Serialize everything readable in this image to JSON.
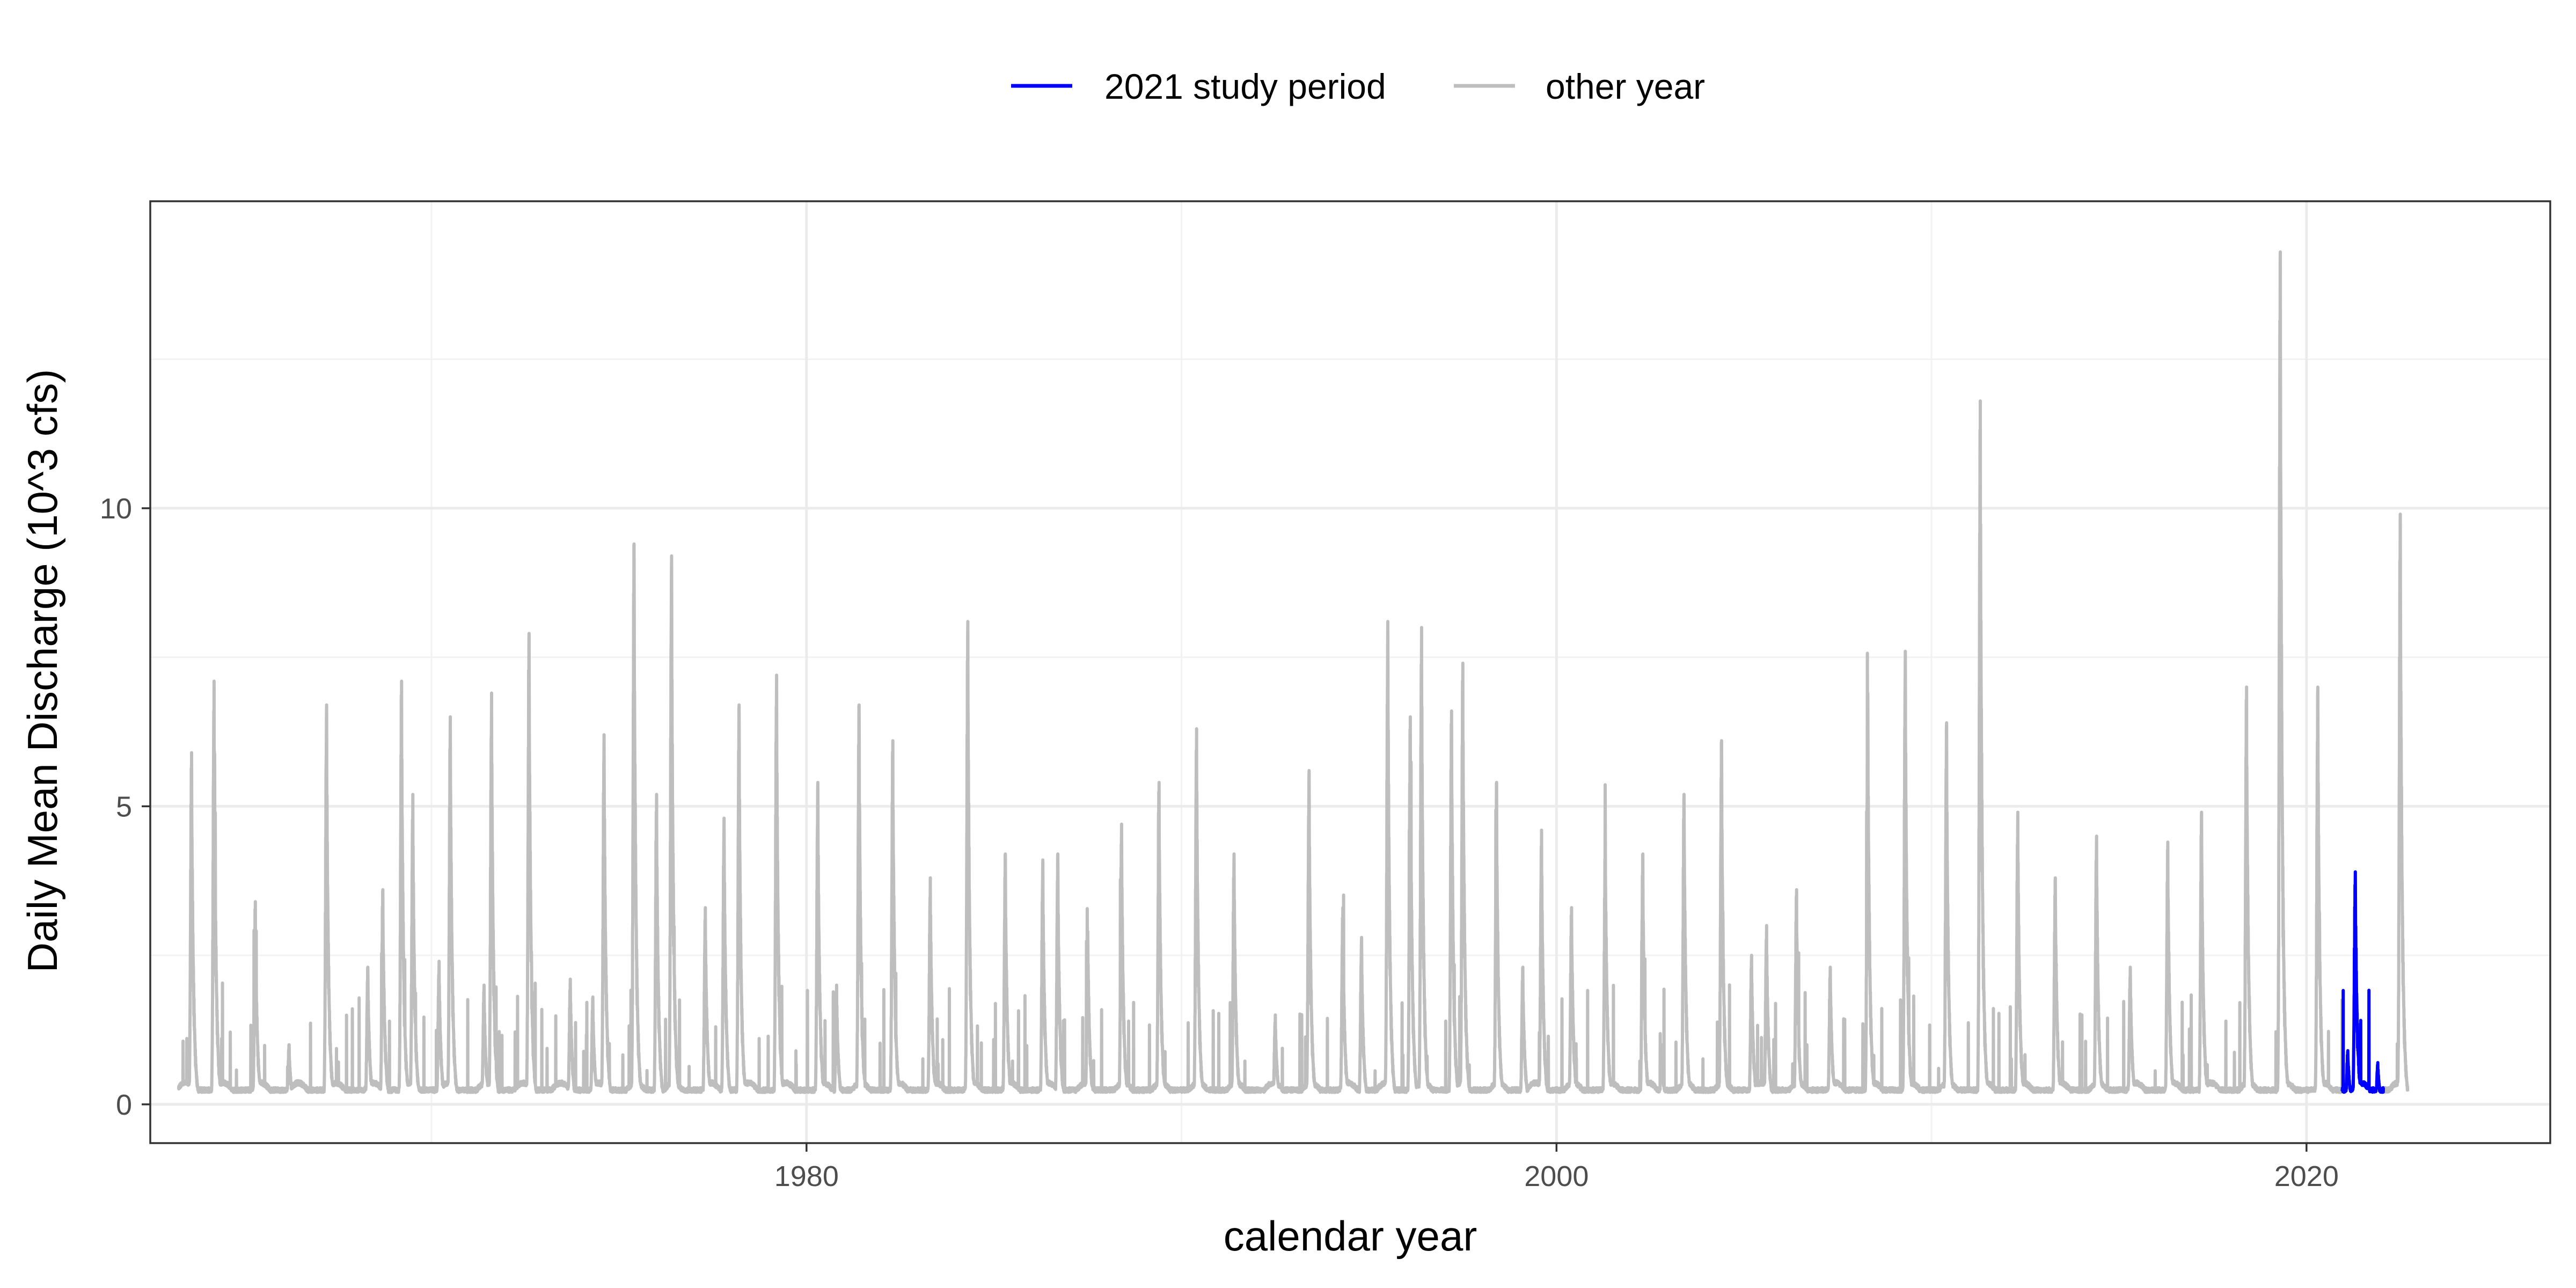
{
  "chart_data": {
    "type": "line",
    "xlabel": "calendar year",
    "ylabel": "Daily Mean Discharge (10^3 cfs)",
    "xlim": [
      1962.5,
      2026.5
    ],
    "ylim": [
      -0.65,
      15.15
    ],
    "x_ticks": [
      1980,
      2000,
      2020
    ],
    "x_tick_labels": [
      "1980",
      "2000",
      "2020"
    ],
    "y_ticks": [
      0,
      5,
      10
    ],
    "y_tick_labels": [
      "0",
      "5",
      "10"
    ],
    "grid": true,
    "legend_position": "top",
    "legend": [
      {
        "label": "2021 study period",
        "color": "#0000ff"
      },
      {
        "label": "other year",
        "color": "#bebebe"
      }
    ],
    "series": [
      {
        "name": "other year",
        "color": "#bebebe",
        "peaks": [
          [
            1963.6,
            5.9
          ],
          [
            1964.2,
            7.1
          ],
          [
            1965.3,
            3.4
          ],
          [
            1966.2,
            1.0
          ],
          [
            1967.2,
            6.7
          ],
          [
            1968.3,
            2.3
          ],
          [
            1968.7,
            3.6
          ],
          [
            1969.2,
            7.1
          ],
          [
            1969.5,
            5.2
          ],
          [
            1970.2,
            2.4
          ],
          [
            1970.5,
            6.5
          ],
          [
            1971.4,
            2.0
          ],
          [
            1971.6,
            6.9
          ],
          [
            1972.6,
            7.9
          ],
          [
            1973.7,
            2.1
          ],
          [
            1974.3,
            1.8
          ],
          [
            1974.6,
            6.2
          ],
          [
            1975.4,
            9.4
          ],
          [
            1976.0,
            5.2
          ],
          [
            1976.4,
            9.2
          ],
          [
            1977.3,
            3.3
          ],
          [
            1977.8,
            4.8
          ],
          [
            1978.2,
            6.7
          ],
          [
            1979.2,
            7.2
          ],
          [
            1980.3,
            5.4
          ],
          [
            1980.8,
            2.0
          ],
          [
            1981.4,
            6.7
          ],
          [
            1982.3,
            6.1
          ],
          [
            1983.3,
            3.8
          ],
          [
            1984.3,
            8.1
          ],
          [
            1985.3,
            4.2
          ],
          [
            1986.3,
            4.1
          ],
          [
            1986.7,
            4.2
          ],
          [
            1987.5,
            2.9
          ],
          [
            1988.4,
            4.7
          ],
          [
            1989.4,
            5.4
          ],
          [
            1990.4,
            6.3
          ],
          [
            1991.4,
            4.2
          ],
          [
            1992.5,
            1.5
          ],
          [
            1993.4,
            5.6
          ],
          [
            1994.3,
            3.3
          ],
          [
            1994.8,
            2.8
          ],
          [
            1995.5,
            8.1
          ],
          [
            1996.1,
            6.5
          ],
          [
            1996.4,
            8.0
          ],
          [
            1997.2,
            6.6
          ],
          [
            1997.5,
            7.4
          ],
          [
            1998.4,
            5.4
          ],
          [
            1999.1,
            2.3
          ],
          [
            1999.6,
            4.6
          ],
          [
            2000.4,
            3.3
          ],
          [
            2001.3,
            4.5
          ],
          [
            2002.3,
            4.2
          ],
          [
            2002.8,
            1.0
          ],
          [
            2003.4,
            5.2
          ],
          [
            2004.4,
            6.1
          ],
          [
            2005.2,
            2.5
          ],
          [
            2005.6,
            3.0
          ],
          [
            2006.4,
            3.6
          ],
          [
            2007.3,
            2.3
          ],
          [
            2008.3,
            6.9
          ],
          [
            2009.3,
            7.6
          ],
          [
            2010.4,
            6.4
          ],
          [
            2011.3,
            11.8
          ],
          [
            2012.3,
            4.9
          ],
          [
            2013.3,
            3.8
          ],
          [
            2014.4,
            4.5
          ],
          [
            2015.3,
            2.3
          ],
          [
            2016.3,
            4.4
          ],
          [
            2017.2,
            4.9
          ],
          [
            2018.4,
            7.0
          ],
          [
            2019.3,
            14.3
          ],
          [
            2020.3,
            7.0
          ],
          [
            2022.5,
            9.9
          ]
        ]
      },
      {
        "name": "2021 study period",
        "color": "#0000ff",
        "peaks": [
          [
            2021.1,
            0.9
          ],
          [
            2021.3,
            3.9
          ],
          [
            2021.9,
            0.7
          ]
        ]
      }
    ]
  }
}
